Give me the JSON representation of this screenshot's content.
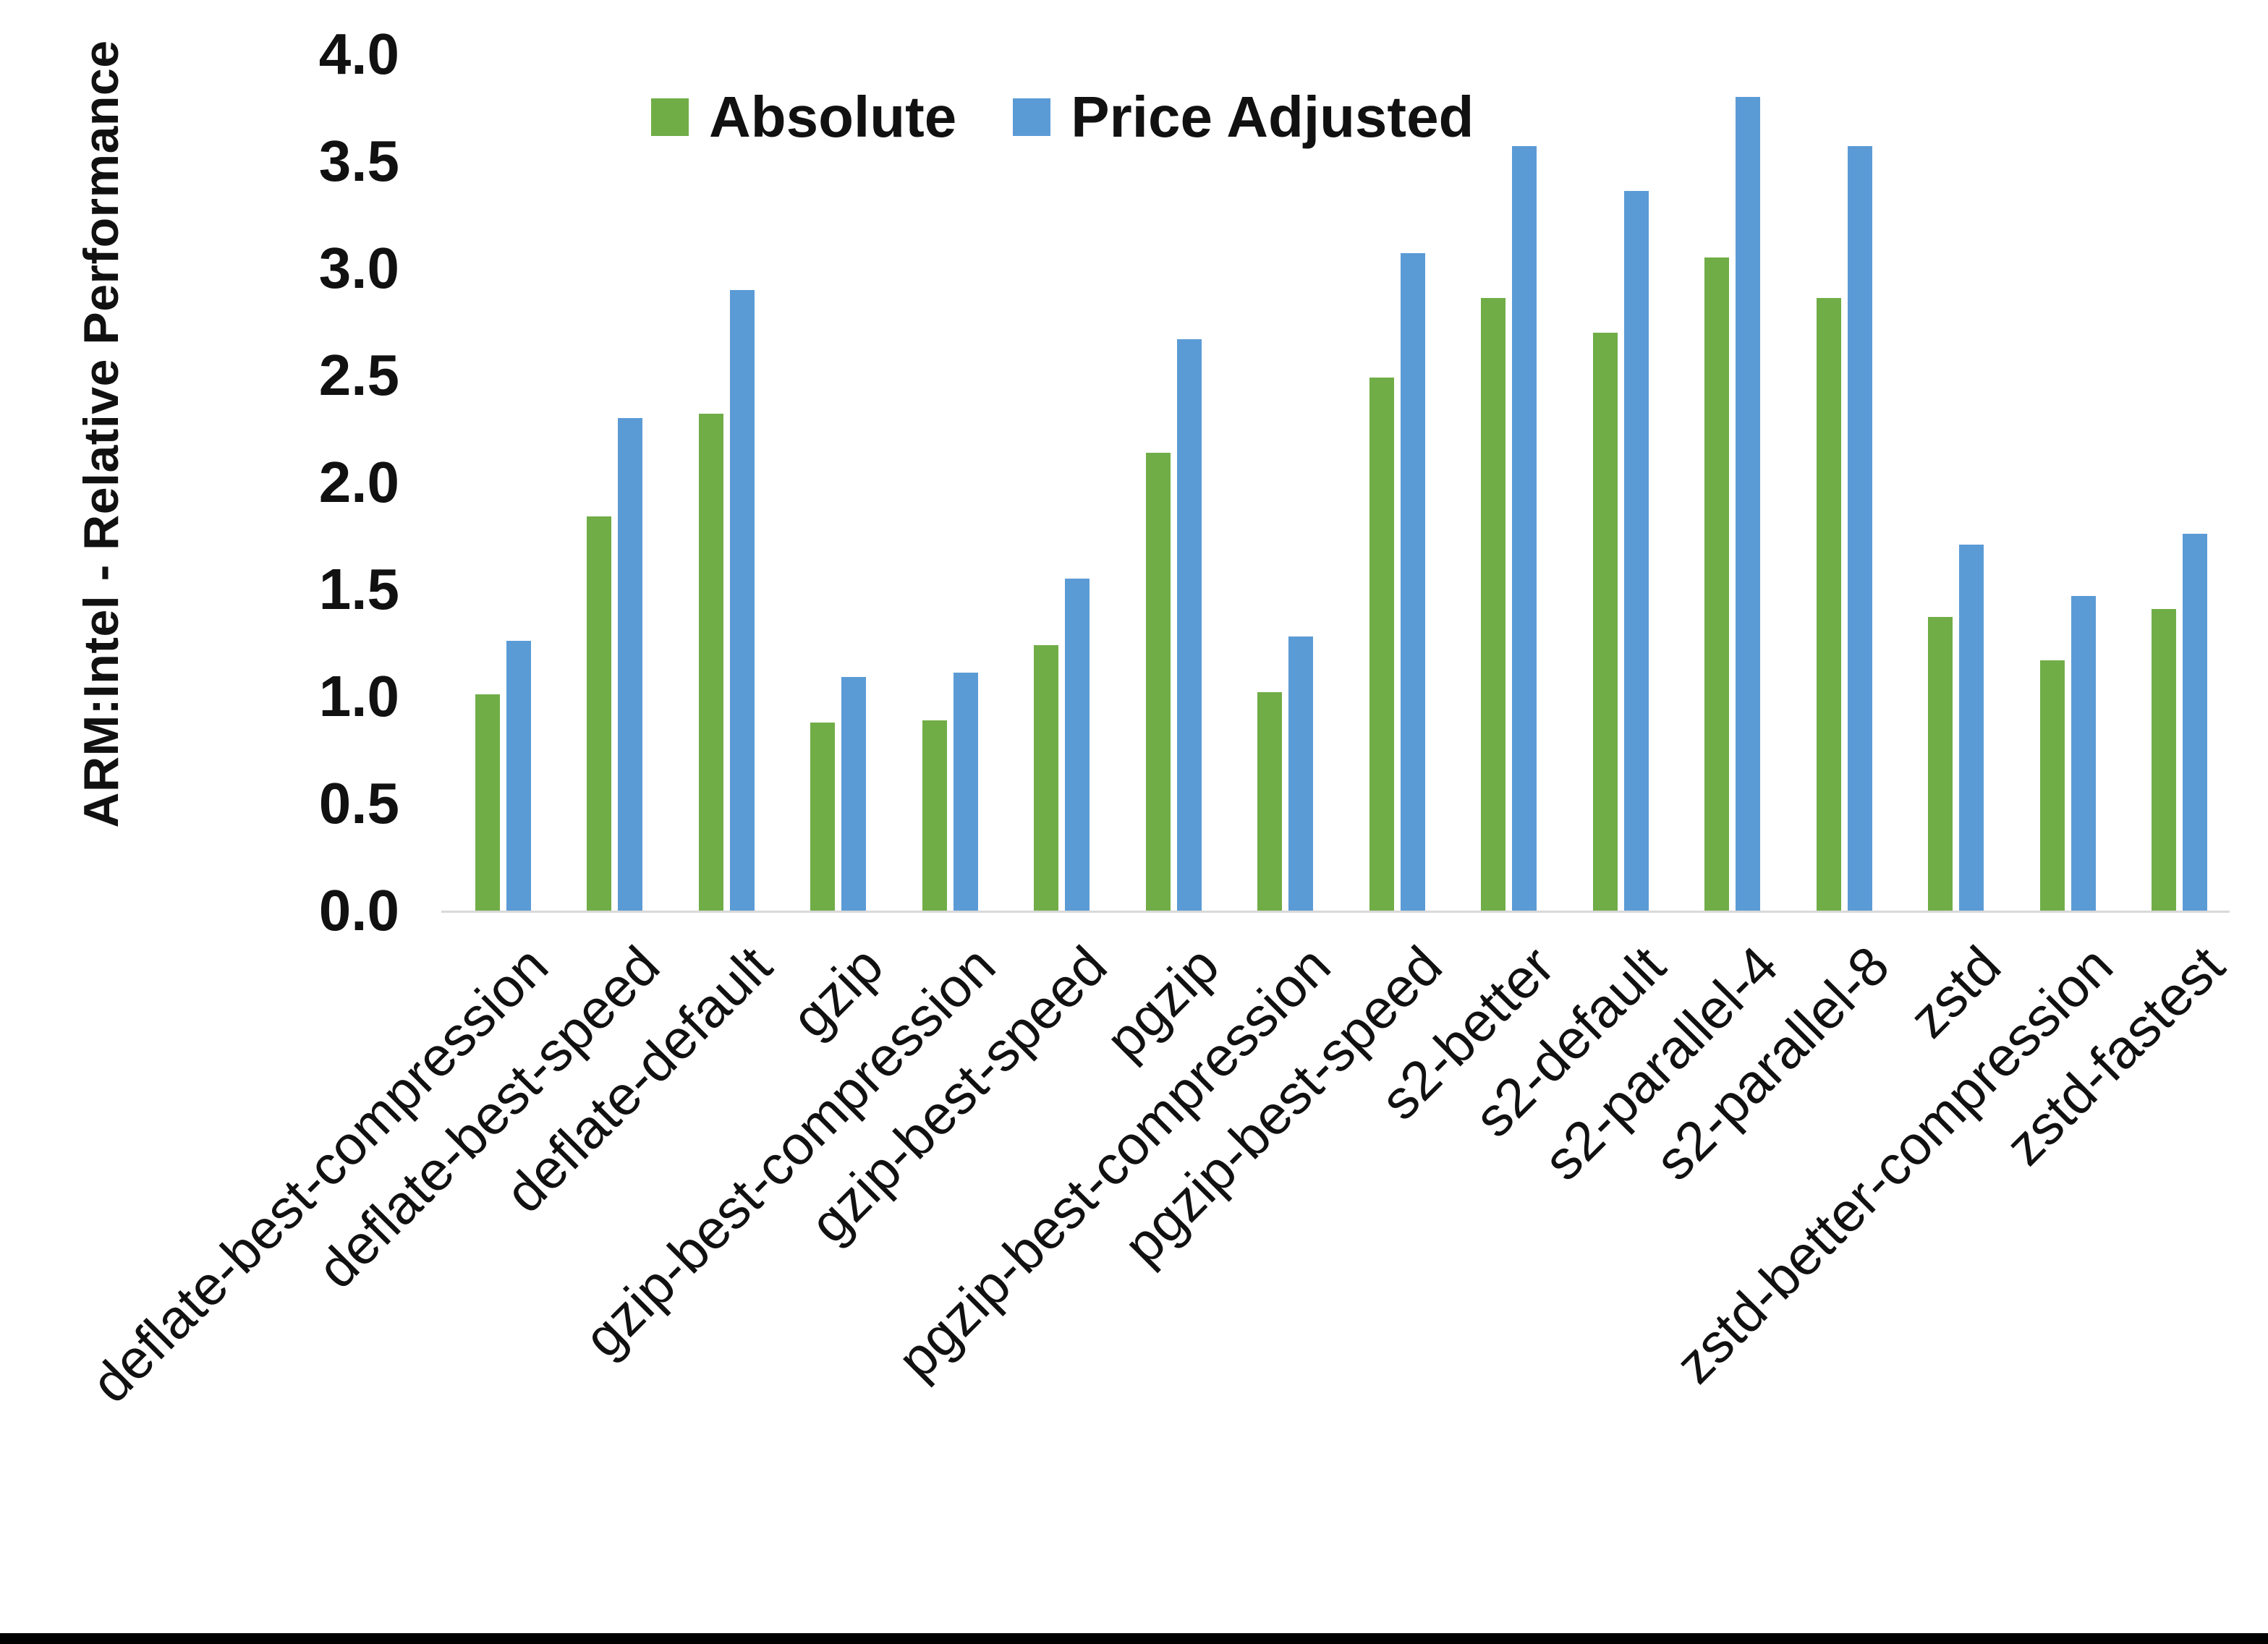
{
  "chart_data": {
    "type": "bar",
    "title": "",
    "ylabel": "ARM:Intel - Relative Performance",
    "xlabel": "",
    "ylim": [
      0.0,
      4.0
    ],
    "ytick_step": 0.5,
    "yticks": [
      "4.0",
      "3.5",
      "3.0",
      "2.5",
      "2.0",
      "1.5",
      "1.0",
      "0.5",
      "0.0"
    ],
    "grid": false,
    "legend_position": "top-center",
    "axis_line_color": "#d9d9d9",
    "categories": [
      "deflate-best-compression",
      "deflate-best-speed",
      "deflate-default",
      "gzip",
      "gzip-best-compression",
      "gzip-best-speed",
      "pgzip",
      "pgzip-best-compression",
      "pgzip-best-speed",
      "s2-better",
      "s2-default",
      "s2-parallel-4",
      "s2-parallel-8",
      "zstd",
      "zstd-better-compression",
      "zstd-fastest"
    ],
    "series": [
      {
        "name": "Absolute",
        "color": "#70AD47",
        "values": [
          1.01,
          1.84,
          2.32,
          0.88,
          0.89,
          1.24,
          2.14,
          1.02,
          2.49,
          2.86,
          2.7,
          3.05,
          2.86,
          1.37,
          1.17,
          1.41
        ]
      },
      {
        "name": "Price Adjusted",
        "color": "#5B9BD5",
        "values": [
          1.26,
          2.3,
          2.9,
          1.09,
          1.11,
          1.55,
          2.67,
          1.28,
          3.07,
          3.57,
          3.36,
          3.8,
          3.57,
          1.71,
          1.47,
          1.76
        ]
      }
    ]
  },
  "page": {
    "background": "#ffffff",
    "bottom_bar_color": "#000000"
  }
}
